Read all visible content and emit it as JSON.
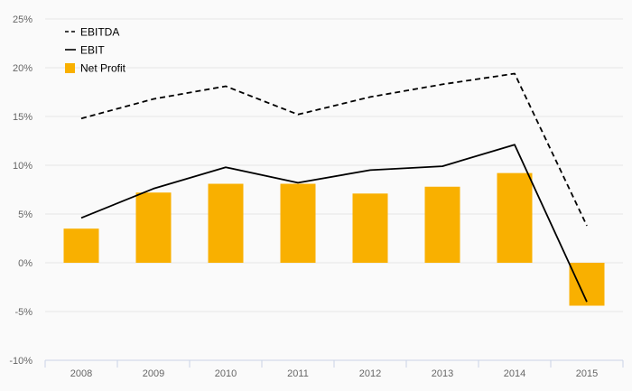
{
  "chart_data": {
    "type": "bar",
    "categories": [
      "2008",
      "2009",
      "2010",
      "2011",
      "2012",
      "2013",
      "2014",
      "2015"
    ],
    "y_ticks": [
      "25%",
      "20%",
      "15%",
      "10%",
      "5%",
      "0%",
      "-5%",
      "-10%"
    ],
    "y_tick_values": [
      25,
      20,
      15,
      10,
      5,
      0,
      -5,
      -10
    ],
    "ylim": [
      -10,
      25
    ],
    "grid": true,
    "legend_position": "top-left",
    "series": [
      {
        "name": "EBITDA",
        "kind": "line",
        "style": "dashed",
        "color": "#000000",
        "values": [
          14.8,
          16.8,
          18.1,
          15.2,
          17.0,
          18.3,
          19.4,
          3.8
        ]
      },
      {
        "name": "EBIT",
        "kind": "line",
        "style": "solid",
        "color": "#000000",
        "values": [
          4.6,
          7.6,
          9.8,
          8.2,
          9.5,
          9.9,
          12.1,
          -4.0
        ]
      },
      {
        "name": "Net Profit",
        "kind": "bar",
        "color": "#f9b000",
        "values": [
          3.5,
          7.2,
          8.1,
          8.1,
          7.1,
          7.8,
          9.2,
          -4.4
        ]
      }
    ]
  }
}
